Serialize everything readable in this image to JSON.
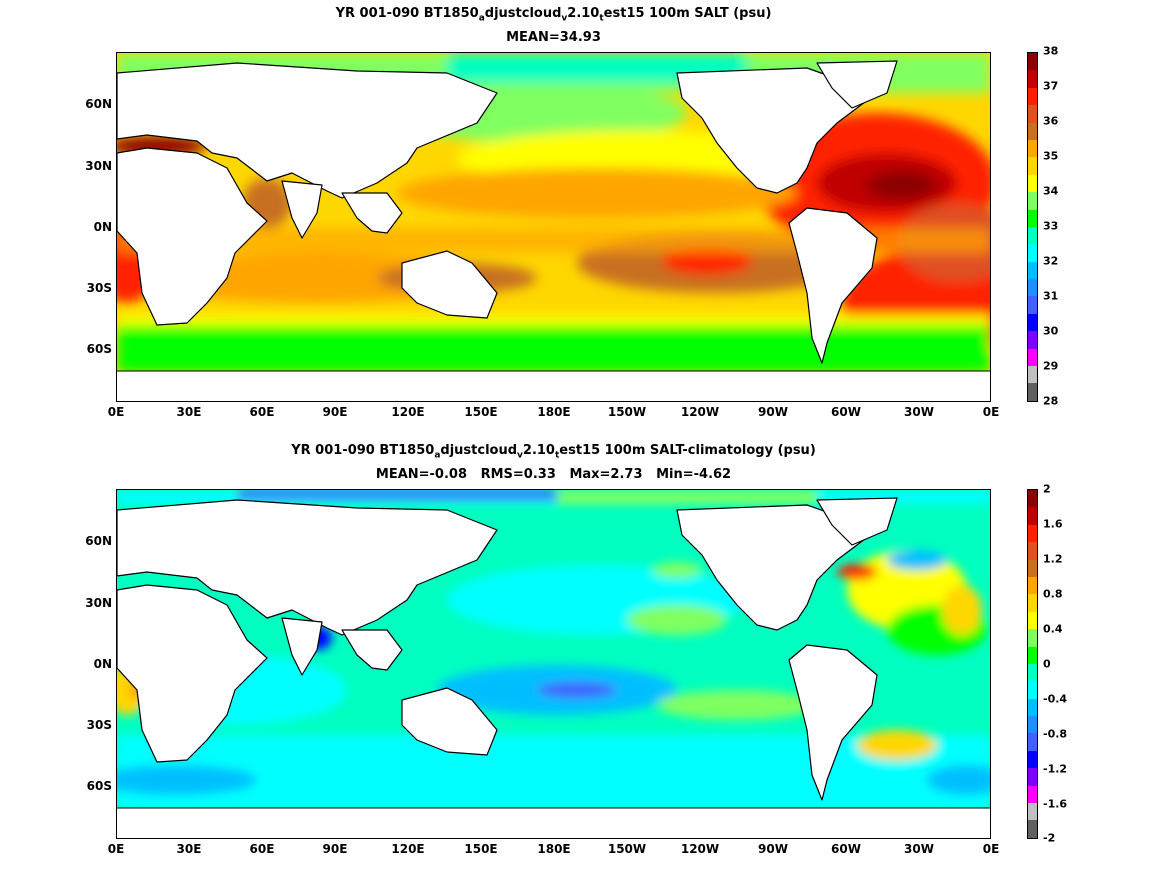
{
  "chart_data": [
    {
      "type": "heatmap",
      "title_line1": {
        "pre": "YR 001-090 BT1850",
        "s1": "a",
        "mid1": "djustcloud",
        "s2": "v",
        "mid2": "2.10",
        "s3": "t",
        "post": "est15 100m SALT (psu)"
      },
      "title_line2": "MEAN=34.93",
      "x_ticks": [
        "0E",
        "30E",
        "60E",
        "90E",
        "120E",
        "150E",
        "180E",
        "150W",
        "120W",
        "90W",
        "60W",
        "30W",
        "0E"
      ],
      "y_ticks": [
        "60N",
        "30N",
        "0N",
        "30S",
        "60S"
      ],
      "colorbar": {
        "ticks": [
          "38",
          "37",
          "36",
          "35",
          "34",
          "33",
          "32",
          "31",
          "30",
          "29",
          "28"
        ],
        "range": [
          28,
          38
        ],
        "colors": [
          "#8b0000",
          "#c00000",
          "#ff2000",
          "#e05020",
          "#c87020",
          "#ffa500",
          "#ffd700",
          "#ffff00",
          "#80ff60",
          "#00ff00",
          "#00ffc0",
          "#00ffff",
          "#00bfff",
          "#1e90ff",
          "#4060ff",
          "#0000ff",
          "#8000ff",
          "#ff00ff",
          "#c0c0c0",
          "#606060"
        ]
      }
    },
    {
      "type": "heatmap",
      "title_line1": {
        "pre": "YR 001-090 BT1850",
        "s1": "a",
        "mid1": "djustcloud",
        "s2": "v",
        "mid2": "2.10",
        "s3": "t",
        "post": "est15 100m SALT-climatology (psu)"
      },
      "title_line2": "MEAN=-0.08   RMS=0.33   Max=2.73   Min=-4.62",
      "x_ticks": [
        "0E",
        "30E",
        "60E",
        "90E",
        "120E",
        "150E",
        "180E",
        "150W",
        "120W",
        "90W",
        "60W",
        "30W",
        "0E"
      ],
      "y_ticks": [
        "60N",
        "30N",
        "0N",
        "30S",
        "60S"
      ],
      "colorbar": {
        "ticks": [
          "2",
          "1.6",
          "1.2",
          "0.8",
          "0.4",
          "0",
          "-0.4",
          "-0.8",
          "-1.2",
          "-1.6",
          "-2"
        ],
        "range": [
          -2,
          2
        ],
        "colors": [
          "#8b0000",
          "#c00000",
          "#ff2000",
          "#e05020",
          "#c87020",
          "#ffa500",
          "#ffd700",
          "#ffff00",
          "#80ff60",
          "#00ff00",
          "#00ffc0",
          "#00ffff",
          "#00bfff",
          "#1e90ff",
          "#4060ff",
          "#0000ff",
          "#8000ff",
          "#ff00ff",
          "#c0c0c0",
          "#606060"
        ]
      }
    }
  ]
}
